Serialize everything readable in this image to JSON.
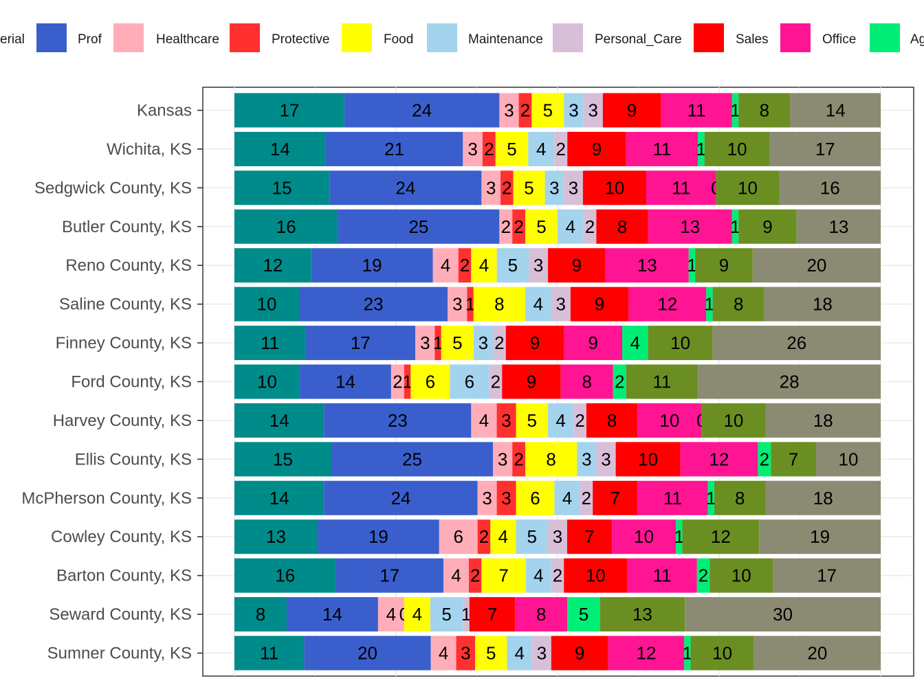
{
  "chart_data": {
    "type": "bar",
    "orientation": "horizontal",
    "stacked": true,
    "title": "",
    "xlabel": "",
    "ylabel": "",
    "grid": true,
    "legend_position": "top",
    "categories": [
      "Kansas",
      "Wichita, KS",
      "Sedgwick County, KS",
      "Butler County, KS",
      "Reno County, KS",
      "Saline County, KS",
      "Finney County, KS",
      "Ford County, KS",
      "Harvey County, KS",
      "Ellis County, KS",
      "McPherson County, KS",
      "Cowley County, KS",
      "Barton County, KS",
      "Seward County, KS",
      "Sumner County, KS"
    ],
    "series": [
      {
        "name": "Managerial",
        "legend_visible": "erial",
        "color": "#008b8b",
        "values": [
          17,
          14,
          15,
          16,
          12,
          10,
          11,
          10,
          14,
          15,
          14,
          13,
          16,
          8,
          11
        ]
      },
      {
        "name": "Prof",
        "color": "#3a5fcd",
        "values": [
          24,
          21,
          24,
          25,
          19,
          23,
          17,
          14,
          23,
          25,
          24,
          19,
          17,
          14,
          20
        ]
      },
      {
        "name": "Healthcare",
        "color": "#ffaeb9",
        "values": [
          3,
          3,
          3,
          2,
          4,
          3,
          3,
          2,
          4,
          3,
          3,
          6,
          4,
          4,
          4
        ]
      },
      {
        "name": "Protective",
        "color": "#ff3030",
        "values": [
          2,
          2,
          2,
          2,
          2,
          1,
          1,
          1,
          3,
          2,
          3,
          2,
          2,
          0,
          3
        ]
      },
      {
        "name": "Food",
        "color": "#ffff00",
        "values": [
          5,
          5,
          5,
          5,
          4,
          8,
          5,
          6,
          5,
          8,
          6,
          4,
          7,
          4,
          5
        ]
      },
      {
        "name": "Maintenance",
        "color": "#a4d3ee",
        "values": [
          3,
          4,
          3,
          4,
          5,
          4,
          3,
          6,
          4,
          3,
          4,
          5,
          4,
          5,
          4
        ]
      },
      {
        "name": "Personal_Care",
        "color": "#d8bfd8",
        "values": [
          3,
          2,
          3,
          2,
          3,
          3,
          2,
          2,
          2,
          3,
          2,
          3,
          2,
          1,
          3
        ]
      },
      {
        "name": "Sales",
        "color": "#ff0000",
        "values": [
          9,
          9,
          10,
          8,
          9,
          9,
          9,
          9,
          8,
          10,
          7,
          7,
          10,
          7,
          9
        ]
      },
      {
        "name": "Office",
        "color": "#ff1493",
        "values": [
          11,
          11,
          11,
          13,
          13,
          12,
          9,
          8,
          10,
          12,
          11,
          10,
          11,
          8,
          12
        ]
      },
      {
        "name": "Ag",
        "legend_visible": "Ag",
        "color": "#00ee76",
        "values": [
          1,
          1,
          0,
          1,
          1,
          1,
          4,
          2,
          0,
          2,
          1,
          1,
          2,
          5,
          1
        ]
      },
      {
        "name": "",
        "color": "#6b8e23",
        "values": [
          8,
          10,
          10,
          9,
          9,
          8,
          10,
          11,
          10,
          7,
          8,
          12,
          10,
          13,
          10
        ]
      },
      {
        "name": "",
        "color": "#8b8b73",
        "values": [
          14,
          17,
          16,
          13,
          20,
          18,
          26,
          28,
          18,
          10,
          18,
          19,
          17,
          30,
          20
        ]
      }
    ]
  }
}
